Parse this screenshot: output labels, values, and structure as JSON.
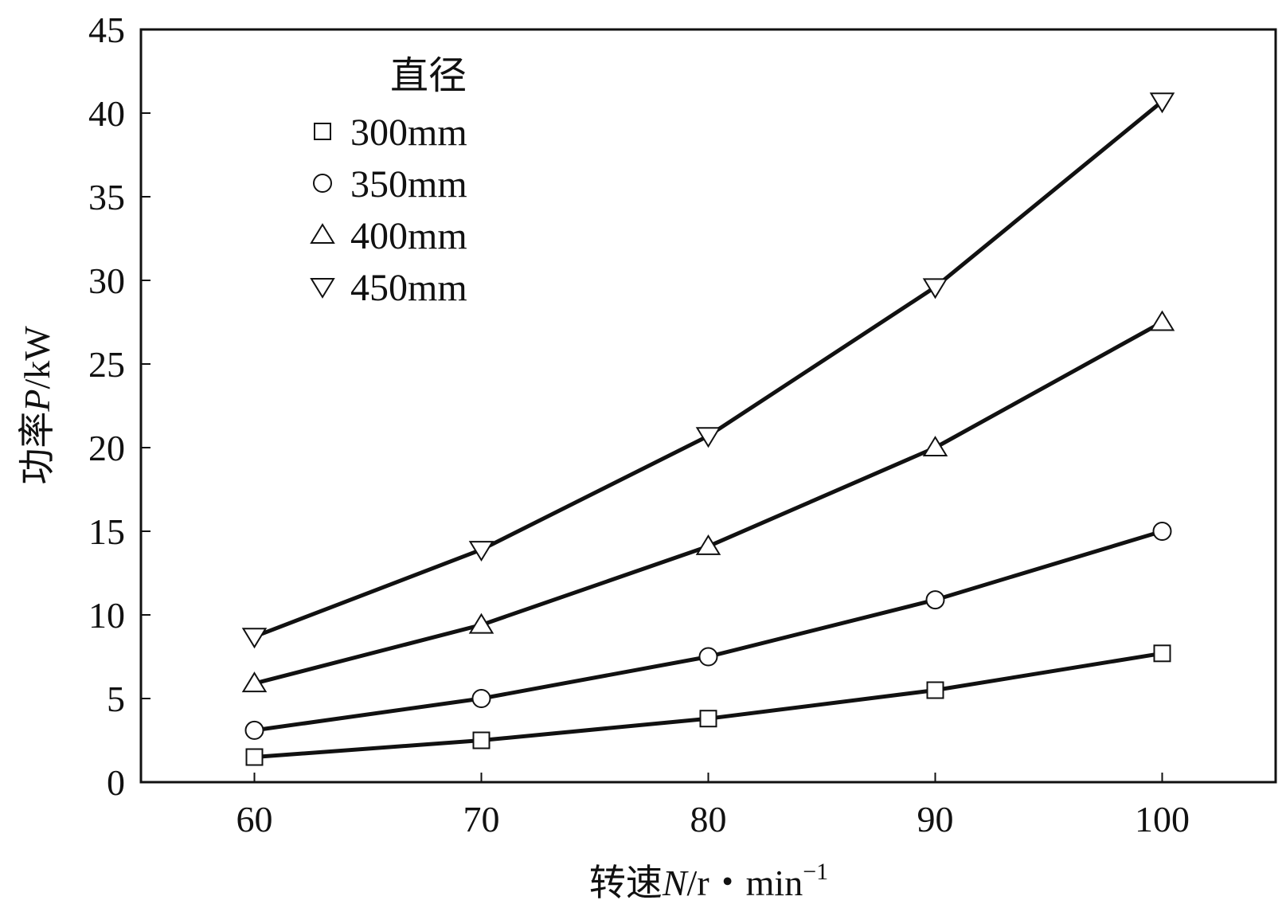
{
  "chart_data": {
    "type": "line",
    "xlabel": {
      "prefix": "转速",
      "var": "N",
      "unit": "/r・min",
      "sup": "−1"
    },
    "ylabel": {
      "prefix": "功率",
      "var": "P",
      "unit": "/kW"
    },
    "x": [
      60,
      70,
      80,
      90,
      100
    ],
    "xlim": [
      55,
      105
    ],
    "ylim": [
      0,
      45
    ],
    "xticks": [
      60,
      70,
      80,
      90,
      100
    ],
    "yticks": [
      0,
      5,
      10,
      15,
      20,
      25,
      30,
      35,
      40,
      45
    ],
    "grid": false,
    "legend_title": "直径",
    "legend_position": "top-left",
    "series": [
      {
        "name": "300mm",
        "marker": "square",
        "values": [
          1.5,
          2.5,
          3.8,
          5.5,
          7.7
        ]
      },
      {
        "name": "350mm",
        "marker": "circle",
        "values": [
          3.1,
          5.0,
          7.5,
          10.9,
          15.0
        ]
      },
      {
        "name": "400mm",
        "marker": "triangle-up",
        "values": [
          5.9,
          9.4,
          14.1,
          20.0,
          27.5
        ]
      },
      {
        "name": "450mm",
        "marker": "triangle-down",
        "values": [
          8.7,
          13.9,
          20.7,
          29.6,
          40.7
        ]
      }
    ],
    "colors": {
      "line": "#111111",
      "marker_fill": "#ffffff"
    }
  }
}
